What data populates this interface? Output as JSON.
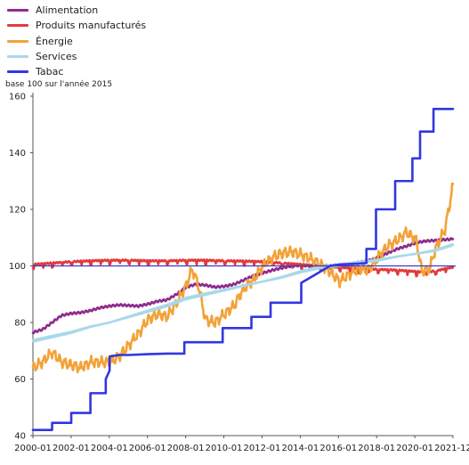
{
  "chart_data": {
    "type": "line",
    "ylabel": "base 100 sur l'année 2015",
    "ylim": [
      40,
      160
    ],
    "yticks": [
      "40",
      "60",
      "80",
      "100",
      "120",
      "140",
      "160"
    ],
    "xticks": [
      "2000-01",
      "2002-01",
      "2004-01",
      "2006-01",
      "2008-01",
      "2010-01",
      "2012-01",
      "2014-01",
      "2016-01",
      "2018-01",
      "2020-01",
      "2021-12"
    ],
    "x_start": 2000.0,
    "x_end": 2021.9167,
    "reference_line": 100,
    "legend_position": "top-left",
    "grid": false,
    "series": [
      {
        "name": "Alimentation",
        "color": "#8e2c8e",
        "points": [
          [
            2000.0,
            76.5
          ],
          [
            2000.5,
            77.5
          ],
          [
            2001.0,
            80
          ],
          [
            2001.5,
            82.5
          ],
          [
            2002.0,
            83.2
          ],
          [
            2002.5,
            83.5
          ],
          [
            2003.0,
            84.2
          ],
          [
            2003.5,
            85.2
          ],
          [
            2004.0,
            85.8
          ],
          [
            2004.5,
            86.2
          ],
          [
            2005.0,
            86
          ],
          [
            2005.5,
            85.8
          ],
          [
            2006.0,
            86.5
          ],
          [
            2006.5,
            87.5
          ],
          [
            2007.0,
            88
          ],
          [
            2007.5,
            90
          ],
          [
            2008.0,
            92.5
          ],
          [
            2008.5,
            93.5
          ],
          [
            2009.0,
            93.2
          ],
          [
            2009.5,
            92.5
          ],
          [
            2010.0,
            92.8
          ],
          [
            2010.5,
            93.5
          ],
          [
            2011.0,
            95
          ],
          [
            2011.5,
            96.5
          ],
          [
            2012.0,
            97.5
          ],
          [
            2012.5,
            98.5
          ],
          [
            2013.0,
            99.3
          ],
          [
            2013.5,
            100
          ],
          [
            2014.0,
            100.2
          ],
          [
            2014.5,
            100
          ],
          [
            2015.0,
            99.8
          ],
          [
            2015.5,
            100
          ],
          [
            2016.0,
            100.3
          ],
          [
            2016.5,
            100.6
          ],
          [
            2017.0,
            101.2
          ],
          [
            2017.5,
            101.8
          ],
          [
            2018.0,
            103
          ],
          [
            2018.5,
            104.5
          ],
          [
            2019.0,
            106
          ],
          [
            2019.5,
            107
          ],
          [
            2020.0,
            108.2
          ],
          [
            2020.5,
            108.8
          ],
          [
            2021.0,
            109
          ],
          [
            2021.5,
            109.3
          ],
          [
            2021.9167,
            109.5
          ]
        ]
      },
      {
        "name": "Produits manufacturés",
        "color": "#e23a3a",
        "points": [
          [
            2000.0,
            100.5
          ],
          [
            2001.0,
            101
          ],
          [
            2002.0,
            101.5
          ],
          [
            2003.0,
            101.8
          ],
          [
            2004.0,
            102
          ],
          [
            2005.0,
            102
          ],
          [
            2006.0,
            101.8
          ],
          [
            2007.0,
            101.8
          ],
          [
            2008.0,
            102
          ],
          [
            2009.0,
            102
          ],
          [
            2010.0,
            101.8
          ],
          [
            2011.0,
            101.7
          ],
          [
            2012.0,
            101.5
          ],
          [
            2013.0,
            101
          ],
          [
            2014.0,
            100.5
          ],
          [
            2015.0,
            100
          ],
          [
            2016.0,
            99.5
          ],
          [
            2017.0,
            99
          ],
          [
            2018.0,
            98.8
          ],
          [
            2019.0,
            98.5
          ],
          [
            2020.0,
            98
          ],
          [
            2020.5,
            97.8
          ],
          [
            2021.0,
            98.2
          ],
          [
            2021.5,
            99
          ],
          [
            2021.9167,
            99.5
          ]
        ]
      },
      {
        "name": "Énergie",
        "color": "#f3a238",
        "points": [
          [
            2000.0,
            64
          ],
          [
            2000.5,
            66
          ],
          [
            2001.0,
            69.5
          ],
          [
            2001.5,
            66
          ],
          [
            2002.0,
            65
          ],
          [
            2002.5,
            64
          ],
          [
            2003.0,
            66
          ],
          [
            2003.5,
            66
          ],
          [
            2004.0,
            66
          ],
          [
            2004.5,
            68
          ],
          [
            2005.0,
            72
          ],
          [
            2005.5,
            76
          ],
          [
            2006.0,
            81
          ],
          [
            2006.5,
            83
          ],
          [
            2007.0,
            82
          ],
          [
            2007.5,
            87
          ],
          [
            2008.0,
            93
          ],
          [
            2008.3,
            99
          ],
          [
            2008.6,
            94
          ],
          [
            2009.0,
            81
          ],
          [
            2009.5,
            80
          ],
          [
            2010.0,
            83
          ],
          [
            2010.5,
            86
          ],
          [
            2011.0,
            92
          ],
          [
            2011.5,
            95
          ],
          [
            2012.0,
            100
          ],
          [
            2012.5,
            103
          ],
          [
            2013.0,
            104.5
          ],
          [
            2013.5,
            105
          ],
          [
            2014.0,
            104
          ],
          [
            2014.5,
            102.5
          ],
          [
            2015.0,
            100.5
          ],
          [
            2015.5,
            98
          ],
          [
            2016.0,
            94.5
          ],
          [
            2016.5,
            97
          ],
          [
            2017.0,
            99
          ],
          [
            2017.5,
            98.5
          ],
          [
            2018.0,
            103
          ],
          [
            2018.5,
            107
          ],
          [
            2019.0,
            109
          ],
          [
            2019.5,
            112
          ],
          [
            2020.0,
            109
          ],
          [
            2020.3,
            98
          ],
          [
            2020.7,
            99
          ],
          [
            2021.0,
            106
          ],
          [
            2021.5,
            113
          ],
          [
            2021.75,
            122
          ],
          [
            2021.9167,
            129
          ]
        ]
      },
      {
        "name": "Services",
        "color": "#a8d8ea",
        "points": [
          [
            2000.0,
            73.5
          ],
          [
            2001.0,
            75
          ],
          [
            2002.0,
            76.5
          ],
          [
            2003.0,
            78.5
          ],
          [
            2004.0,
            80
          ],
          [
            2005.0,
            82
          ],
          [
            2006.0,
            84
          ],
          [
            2007.0,
            86
          ],
          [
            2008.0,
            88.5
          ],
          [
            2009.0,
            90
          ],
          [
            2010.0,
            91.5
          ],
          [
            2011.0,
            93
          ],
          [
            2012.0,
            94.5
          ],
          [
            2013.0,
            96
          ],
          [
            2014.0,
            98
          ],
          [
            2015.0,
            99.5
          ],
          [
            2016.0,
            100.3
          ],
          [
            2017.0,
            101.2
          ],
          [
            2018.0,
            102
          ],
          [
            2019.0,
            103.3
          ],
          [
            2020.0,
            104.3
          ],
          [
            2021.0,
            105.5
          ],
          [
            2021.9167,
            107.5
          ]
        ]
      },
      {
        "name": "Tabac",
        "color": "#3236e0",
        "points": [
          [
            2000.0,
            42
          ],
          [
            2001.0,
            42
          ],
          [
            2001.0,
            44.5
          ],
          [
            2002.0,
            44.5
          ],
          [
            2002.0,
            48
          ],
          [
            2003.0,
            48
          ],
          [
            2003.0,
            55
          ],
          [
            2003.8,
            55
          ],
          [
            2003.8,
            60
          ],
          [
            2004.0,
            63
          ],
          [
            2004.0,
            68
          ],
          [
            2004.5,
            68.5
          ],
          [
            2005.0,
            68.5
          ],
          [
            2006.0,
            68.8
          ],
          [
            2007.0,
            69
          ],
          [
            2007.9,
            69
          ],
          [
            2007.9,
            73
          ],
          [
            2009.9,
            73
          ],
          [
            2009.9,
            78
          ],
          [
            2011.4,
            78
          ],
          [
            2011.4,
            82
          ],
          [
            2012.4,
            82
          ],
          [
            2012.4,
            87
          ],
          [
            2014.0,
            87
          ],
          [
            2014.0,
            94
          ],
          [
            2014.5,
            96
          ],
          [
            2015.0,
            98
          ],
          [
            2015.5,
            100
          ],
          [
            2016.0,
            100.5
          ],
          [
            2017.0,
            100.8
          ],
          [
            2017.4,
            101
          ],
          [
            2017.4,
            106
          ],
          [
            2017.9,
            106
          ],
          [
            2017.9,
            120
          ],
          [
            2018.9,
            120
          ],
          [
            2018.9,
            130
          ],
          [
            2019.8,
            130
          ],
          [
            2019.8,
            138
          ],
          [
            2020.2,
            138
          ],
          [
            2020.2,
            147.5
          ],
          [
            2020.9,
            147.5
          ],
          [
            2020.9,
            155.5
          ],
          [
            2021.9167,
            155.5
          ]
        ]
      }
    ]
  }
}
